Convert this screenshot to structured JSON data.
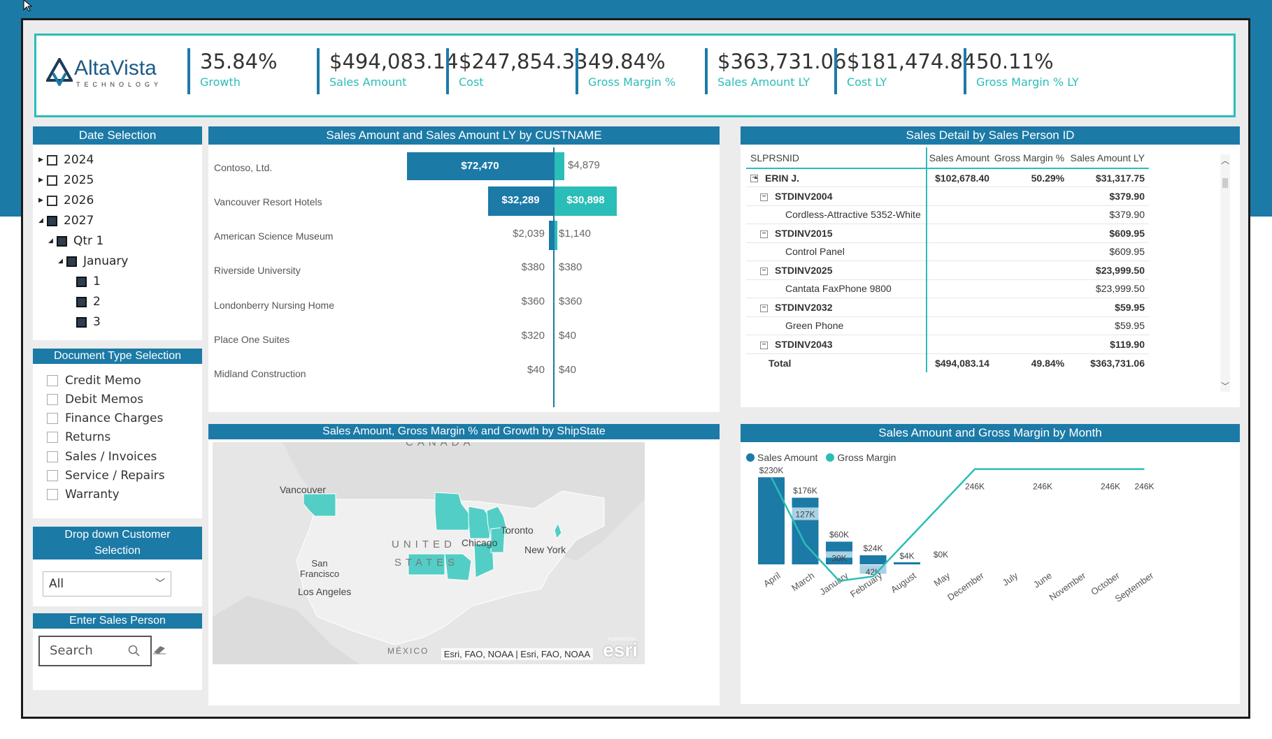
{
  "kpis": [
    {
      "value": "35.84%",
      "label": "Growth"
    },
    {
      "value": "$494,083.14",
      "label": "Sales Amount"
    },
    {
      "value": "$247,854.33",
      "label": "Cost"
    },
    {
      "value": "49.84%",
      "label": "Gross Margin %"
    },
    {
      "value": "$363,731.06",
      "label": "Sales Amount LY"
    },
    {
      "value": "$181,474.84",
      "label": "Cost LY"
    },
    {
      "value": "50.11%",
      "label": "Gross Margin % LY"
    }
  ],
  "logo": {
    "name_a": "Alta",
    "name_b": "Vista",
    "sub": "TECHNOLOGY"
  },
  "date_selection": {
    "title": "Date Selection",
    "items": [
      "2024",
      "2025",
      "2026",
      "2027",
      "Qtr 1",
      "January",
      "1",
      "2",
      "3"
    ]
  },
  "doc_type": {
    "title": "Document Type Selection",
    "items": [
      "Credit Memo",
      "Debit Memos",
      "Finance Charges",
      "Returns",
      "Sales / Invoices",
      "Service / Repairs",
      "Warranty"
    ]
  },
  "customer_dd": {
    "title": "Drop down Customer Selection",
    "value": "All"
  },
  "sales_person": {
    "title": "Enter Sales Person",
    "placeholder": "Search"
  },
  "cust_chart": {
    "title": "Sales Amount and Sales Amount LY by CUSTNAME",
    "rows": [
      {
        "name": "Contoso, Ltd.",
        "sales": "$72,470",
        "ly": "$4,879"
      },
      {
        "name": "Vancouver Resort Hotels",
        "sales": "$32,289",
        "ly": "$30,898"
      },
      {
        "name": "American Science Museum",
        "sales": "$2,039",
        "ly": "$1,140"
      },
      {
        "name": "Riverside University",
        "sales": "$380",
        "ly": "$380"
      },
      {
        "name": "Londonberry Nursing Home",
        "sales": "$360",
        "ly": "$360"
      },
      {
        "name": "Place One Suites",
        "sales": "$320",
        "ly": "$40"
      },
      {
        "name": "Midland Construction",
        "sales": "$40",
        "ly": "$40"
      }
    ]
  },
  "detail": {
    "title": "Sales Detail by Sales Person ID",
    "headers": [
      "SLPRSNID",
      "Sales Amount",
      "Gross Margin %",
      "Sales Amount LY"
    ],
    "rows": [
      {
        "label": "ERIN J.",
        "sales": "$102,678.40",
        "gm": "50.29%",
        "ly": "$31,317.75"
      },
      {
        "label": "STDINV2004",
        "sales": "",
        "gm": "",
        "ly": "$379.90"
      },
      {
        "label": "Cordless-Attractive 5352-White",
        "sales": "",
        "gm": "",
        "ly": "$379.90"
      },
      {
        "label": "STDINV2015",
        "sales": "",
        "gm": "",
        "ly": "$609.95"
      },
      {
        "label": "Control Panel",
        "sales": "",
        "gm": "",
        "ly": "$609.95"
      },
      {
        "label": "STDINV2025",
        "sales": "",
        "gm": "",
        "ly": "$23,999.50"
      },
      {
        "label": "Cantata FaxPhone 9800",
        "sales": "",
        "gm": "",
        "ly": "$23,999.50"
      },
      {
        "label": "STDINV2032",
        "sales": "",
        "gm": "",
        "ly": "$59.95"
      },
      {
        "label": "Green Phone",
        "sales": "",
        "gm": "",
        "ly": "$59.95"
      },
      {
        "label": "STDINV2043",
        "sales": "",
        "gm": "",
        "ly": "$119.90"
      }
    ],
    "total": {
      "label": "Total",
      "sales": "$494,083.14",
      "gm": "49.84%",
      "ly": "$363,731.06"
    }
  },
  "map": {
    "title": "Sales Amount, Gross Margin % and Growth by ShipState",
    "labels": [
      "CANADA",
      "Vancouver",
      "Toronto",
      "UNITED",
      "STATES",
      "Chicago",
      "New York",
      "San Francisco",
      "Los Angeles",
      "MÉXICO"
    ],
    "attribution": "Esri, FAO, NOAA | Esri, FAO, NOAA",
    "esri": "esri",
    "esri_small": "POWERED BY"
  },
  "month_chart": {
    "title": "Sales Amount and Gross Margin by Month",
    "legend": [
      "Sales Amount",
      "Gross Margin"
    ],
    "colors": {
      "sales": "#1c7aa6",
      "margin": "#2bbdb8",
      "light": "#a9d2e4"
    }
  },
  "chart_data": {
    "type": "bar",
    "categories": [
      "April",
      "March",
      "January",
      "February",
      "August",
      "May",
      "December",
      "July",
      "June",
      "November",
      "October",
      "September"
    ],
    "series": [
      {
        "name": "Sales Amount",
        "values": [
          230,
          176,
          60,
          24,
          4,
          0,
          null,
          null,
          null,
          null,
          null,
          null
        ],
        "labels": [
          "$230K",
          "$176K",
          "$60K",
          "$24K",
          "$4K",
          "$0K",
          "",
          "",
          "",
          "",
          "",
          ""
        ]
      },
      {
        "name": "Gross Margin",
        "values": [
          null,
          127,
          30,
          42,
          null,
          null,
          246,
          246,
          246,
          246,
          246,
          246
        ],
        "labels": [
          "",
          "127K",
          "30K",
          "42K",
          "",
          "",
          "246K",
          "",
          "246K",
          "",
          "246K",
          "246K"
        ]
      }
    ],
    "ylim": [
      0,
      260
    ]
  }
}
